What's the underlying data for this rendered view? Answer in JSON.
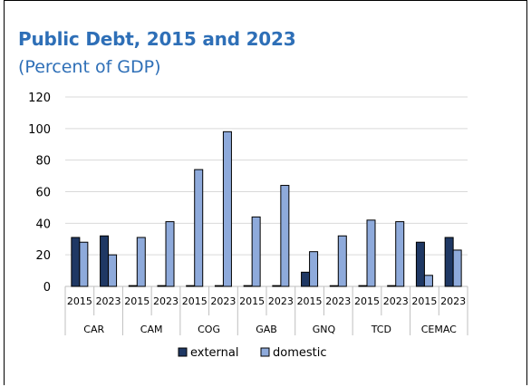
{
  "title": "Public Debt, 2015 and 2023",
  "subtitle": "(Percent of GDP)",
  "chart_data": {
    "type": "bar",
    "title": "Public Debt, 2015 and 2023",
    "subtitle": "(Percent of GDP)",
    "groups": [
      "CAR",
      "CAM",
      "COG",
      "GAB",
      "GNQ",
      "TCD",
      "CEMAC"
    ],
    "years": [
      "2015",
      "2023"
    ],
    "ylim": [
      0,
      120
    ],
    "yticks": [
      0,
      20,
      40,
      60,
      80,
      100,
      120
    ],
    "grid": true,
    "legend_position": "bottom",
    "series": [
      {
        "name": "external",
        "color": "#1f3864",
        "values": [
          [
            31,
            32
          ],
          [
            0.5,
            0.5
          ],
          [
            0.5,
            0.5
          ],
          [
            0.5,
            0.5
          ],
          [
            9,
            0
          ],
          [
            0.5,
            0.5
          ],
          [
            28,
            31
          ]
        ]
      },
      {
        "name": "domestic",
        "color": "#8eaadb",
        "values": [
          [
            28,
            20
          ],
          [
            31,
            41
          ],
          [
            74,
            98
          ],
          [
            44,
            64
          ],
          [
            22,
            32
          ],
          [
            42,
            41
          ],
          [
            7,
            23
          ]
        ]
      }
    ]
  }
}
